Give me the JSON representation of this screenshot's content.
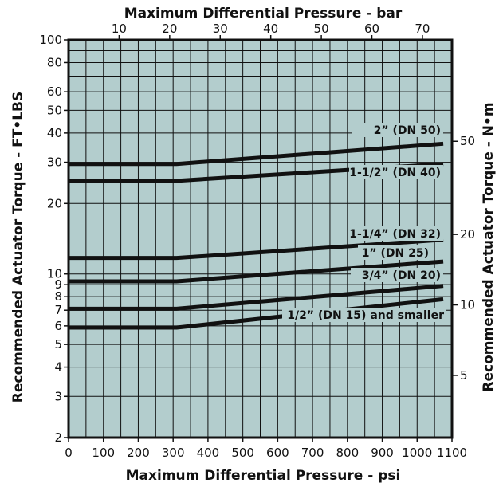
{
  "chart_data": {
    "type": "line",
    "title": "",
    "top_xlabel": "Maximum Differential Pressure - bar",
    "xlabel": "Maximum Differential Pressure - psi",
    "ylabel": "Recommended Actuator Torque - FT•LBS",
    "right_ylabel": "Recommended Actuator Torque - N•m",
    "xlim": [
      0,
      1100
    ],
    "ylim": [
      2,
      100
    ],
    "y_scale": "log",
    "grid": true,
    "plot_background": "#b3cdcd",
    "line_color": "#111111",
    "x_ticks": [
      0,
      100,
      200,
      300,
      400,
      500,
      600,
      700,
      800,
      900,
      1000,
      1100
    ],
    "x_tick_labels": [
      "0",
      "100",
      "200",
      "300",
      "400",
      "500",
      "600",
      "700",
      "800",
      "900",
      "1000",
      "1100"
    ],
    "y_ticks": [
      2,
      3,
      4,
      5,
      6,
      7,
      8,
      9,
      10,
      20,
      30,
      40,
      50,
      60,
      80,
      100
    ],
    "y_tick_labels": [
      "2",
      "3",
      "4",
      "5",
      "6",
      "7",
      "8",
      "9",
      "10",
      "20",
      "30",
      "40",
      "50",
      "60",
      "80",
      "100"
    ],
    "top_x_ticks_bar": [
      10,
      20,
      30,
      40,
      50,
      60,
      70
    ],
    "top_x_tick_labels": [
      "10",
      "20",
      "30",
      "40",
      "50",
      "60",
      "70"
    ],
    "right_y_ticks_nm": [
      5,
      10,
      20,
      50
    ],
    "right_y_tick_labels": [
      "5",
      "10",
      "20",
      "50"
    ],
    "series": [
      {
        "name": "2” (DN 50)",
        "x": [
          0,
          310,
          1075
        ],
        "y": [
          29.5,
          29.5,
          36
        ]
      },
      {
        "name": "1-1/2” (DN 40)",
        "x": [
          0,
          310,
          1075
        ],
        "y": [
          25,
          25,
          29.5
        ]
      },
      {
        "name": "1-1/4” (DN 32)",
        "x": [
          0,
          310,
          1075
        ],
        "y": [
          11.7,
          11.7,
          14
        ]
      },
      {
        "name": "1” (DN 25)",
        "x": [
          0,
          310,
          1075
        ],
        "y": [
          9.3,
          9.3,
          11.3
        ]
      },
      {
        "name": "3/4” (DN 20)",
        "x": [
          0,
          310,
          1075
        ],
        "y": [
          7.1,
          7.1,
          8.9
        ]
      },
      {
        "name": "1/2” (DN 15) and smaller",
        "x": [
          0,
          310,
          1075
        ],
        "y": [
          5.9,
          5.9,
          7.8
        ]
      }
    ]
  }
}
